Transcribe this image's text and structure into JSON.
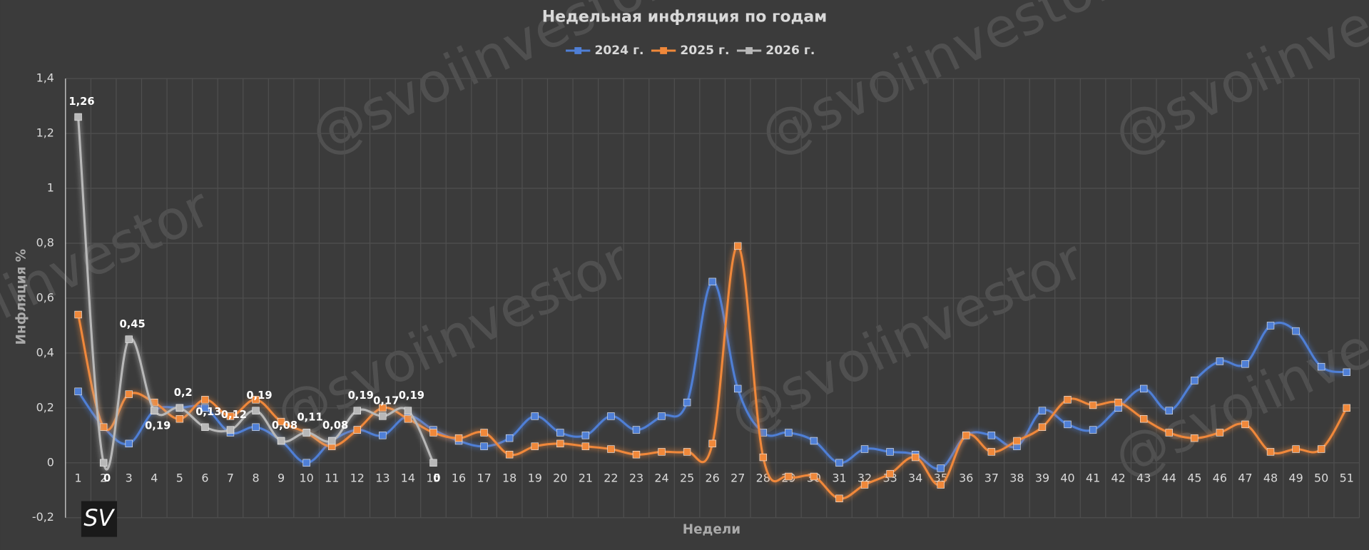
{
  "chart_data": {
    "type": "line",
    "title": "Недельная инфляция по годам",
    "x_label": "Недели",
    "y_label": "Инфляция %",
    "watermarks": [
      "@svoiinvestor"
    ],
    "logo": "SV",
    "legend": "top",
    "grid": true,
    "categories": [
      "1",
      "2",
      "3",
      "4",
      "5",
      "6",
      "7",
      "8",
      "9",
      "10",
      "11",
      "12",
      "13",
      "14",
      "15",
      "16",
      "17",
      "18",
      "19",
      "20",
      "21",
      "22",
      "23",
      "24",
      "25",
      "26",
      "27",
      "28",
      "29",
      "30",
      "31",
      "32",
      "33",
      "34",
      "35",
      "36",
      "37",
      "38",
      "39",
      "40",
      "41",
      "42",
      "43",
      "44",
      "45",
      "46",
      "47",
      "48",
      "49",
      "50",
      "51"
    ],
    "ylim": [
      -0.2,
      1.4
    ],
    "yticks": [
      {
        "value": -0.2,
        "label": "-0,2"
      },
      0,
      {
        "value": 0.2,
        "label": "0,2"
      },
      {
        "value": 0.4,
        "label": "0,4"
      },
      {
        "value": 0.6,
        "label": "0,6"
      },
      {
        "value": 0.8,
        "label": "0,8"
      },
      1,
      {
        "value": 1.2,
        "label": "1,2"
      },
      {
        "value": 1.4,
        "label": "1,4"
      }
    ],
    "series": [
      {
        "name": "2024 г.",
        "color": "#4f7fd6",
        "values": [
          0.26,
          0.13,
          0.07,
          0.19,
          0.2,
          0.2,
          0.11,
          0.13,
          0.08,
          0.0,
          0.08,
          0.12,
          0.1,
          0.17,
          0.12,
          0.08,
          0.06,
          0.09,
          0.17,
          0.11,
          0.1,
          0.17,
          0.12,
          0.17,
          0.22,
          0.66,
          0.27,
          0.11,
          0.11,
          0.08,
          0.0,
          0.05,
          0.04,
          0.03,
          -0.02,
          0.1,
          0.1,
          0.06,
          0.19,
          0.14,
          0.12,
          0.2,
          0.27,
          0.19,
          0.3,
          0.37,
          0.36,
          0.5,
          0.48,
          0.35,
          0.33
        ]
      },
      {
        "name": "2025 г.",
        "color": "#f0883a",
        "values": [
          0.54,
          0.13,
          0.25,
          0.22,
          0.16,
          0.23,
          0.17,
          0.23,
          0.15,
          0.11,
          0.06,
          0.12,
          0.2,
          0.16,
          0.11,
          0.09,
          0.11,
          0.03,
          0.06,
          0.07,
          0.06,
          0.05,
          0.03,
          0.04,
          0.04,
          0.07,
          0.79,
          0.02,
          -0.05,
          -0.05,
          -0.13,
          -0.08,
          -0.04,
          0.02,
          -0.08,
          0.1,
          0.04,
          0.08,
          0.13,
          0.23,
          0.21,
          0.22,
          0.16,
          0.11,
          0.09,
          0.11,
          0.14,
          0.04,
          0.05,
          0.05,
          0.2
        ]
      },
      {
        "name": "2026 г.",
        "color": "#b8b8b8",
        "values": [
          1.26,
          0,
          0.45,
          0.19,
          0.2,
          0.13,
          0.12,
          0.19,
          0.08,
          0.11,
          0.08,
          0.19,
          0.17,
          0.19,
          0,
          null,
          null,
          null,
          null,
          null,
          null,
          null,
          null,
          null,
          null,
          null,
          null,
          null,
          null,
          null,
          null,
          null,
          null,
          null,
          null,
          null,
          null,
          null,
          null,
          null,
          null,
          null,
          null,
          null,
          null,
          null,
          null,
          null,
          null,
          null,
          null
        ],
        "value_labels": [
          "1,26",
          "0",
          "0,45",
          "0,19",
          "0,2",
          "0,13",
          "0,12",
          "0,19",
          "0,08",
          "0,11",
          "0,08",
          "0,19",
          "0,17",
          "0,19",
          "0",
          null,
          null,
          null,
          null,
          null,
          null,
          null,
          null,
          null,
          null,
          null,
          null,
          null,
          null,
          null,
          null,
          null,
          null,
          null,
          null,
          null,
          null,
          null,
          null,
          null,
          null,
          null,
          null,
          null,
          null,
          null,
          null,
          null,
          null,
          null,
          null
        ]
      }
    ]
  }
}
